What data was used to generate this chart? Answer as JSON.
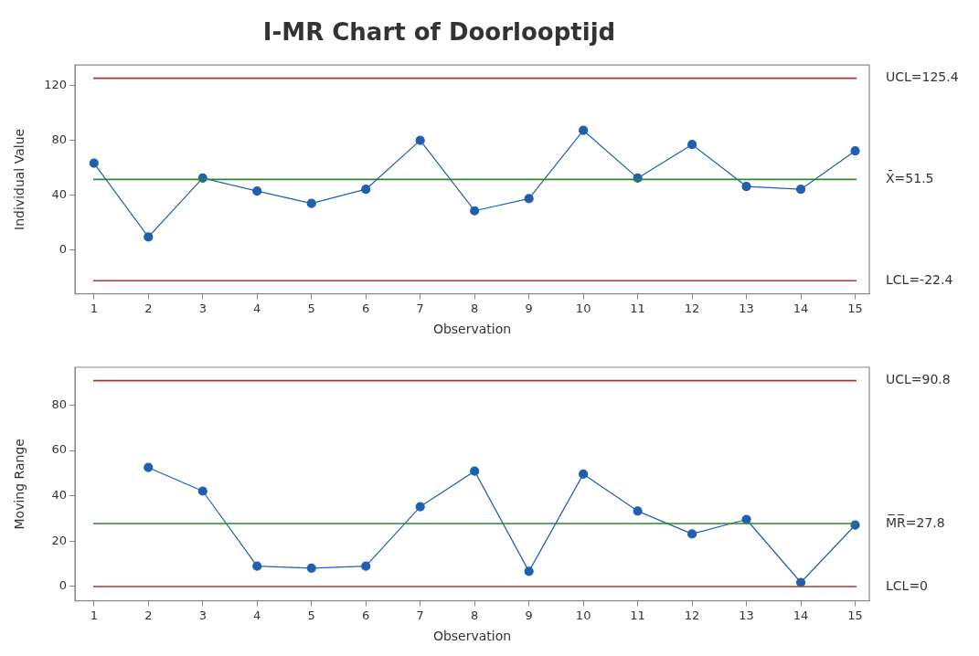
{
  "chart_data": [
    {
      "type": "line",
      "title": "I-MR Chart of Doorlooptijd",
      "xlabel": "Observation",
      "ylabel": "Individual Value",
      "x": [
        1,
        2,
        3,
        4,
        5,
        6,
        7,
        8,
        9,
        10,
        11,
        12,
        13,
        14,
        15
      ],
      "series": [
        {
          "color": "#1f5fb0",
          "values": [
            63.4,
            9.5,
            52.5,
            43,
            34,
            44.3,
            80,
            28.6,
            37.5,
            87.3,
            52.5,
            77,
            46.4,
            44.3,
            72.3
          ]
        }
      ],
      "xlim": [
        0.65,
        15.26
      ],
      "xticks": [
        1,
        2,
        3,
        4,
        5,
        6,
        7,
        8,
        9,
        10,
        11,
        12,
        13,
        14,
        15
      ],
      "ylim": [
        -32,
        135
      ],
      "yticks": [
        0,
        40,
        80,
        120
      ],
      "ref_lines": [
        {
          "axis": "y",
          "value": 125.4,
          "label": "UCL=125.4",
          "color": "#a83a3a"
        },
        {
          "axis": "y",
          "value": 51.5,
          "label": "X̄=51.5",
          "color": "#2a8a2a"
        },
        {
          "axis": "y",
          "value": -22.4,
          "label": "LCL=-22.4",
          "color": "#a83a3a"
        }
      ],
      "marker": "circle",
      "grid": false,
      "legend": false
    },
    {
      "type": "line",
      "xlabel": "Observation",
      "ylabel": "Moving Range",
      "series": [
        {
          "color": "#1f5fb0",
          "x": [
            2,
            3,
            4,
            5,
            6,
            7,
            8,
            9,
            10,
            11,
            12,
            13,
            14,
            15
          ],
          "values": [
            52.5,
            42.1,
            9,
            8.1,
            9,
            35.2,
            50.9,
            6.7,
            49.6,
            33.3,
            23.2,
            29.6,
            1.8,
            27.1
          ]
        }
      ],
      "xlim": [
        0.65,
        15.26
      ],
      "xticks": [
        1,
        2,
        3,
        4,
        5,
        6,
        7,
        8,
        9,
        10,
        11,
        12,
        13,
        14,
        15
      ],
      "ylim": [
        -6.3,
        96.7
      ],
      "yticks": [
        0,
        20,
        40,
        60,
        80
      ],
      "ref_lines": [
        {
          "axis": "y",
          "value": 90.8,
          "label": "UCL=90.8",
          "color": "#a83a3a"
        },
        {
          "axis": "y",
          "value": 27.8,
          "label": "M̅R̅=27.8",
          "color": "#2a8a2a"
        },
        {
          "axis": "y",
          "value": 0,
          "label": "LCL=0",
          "color": "#a83a3a"
        }
      ],
      "marker": "circle",
      "grid": false,
      "legend": false
    }
  ]
}
